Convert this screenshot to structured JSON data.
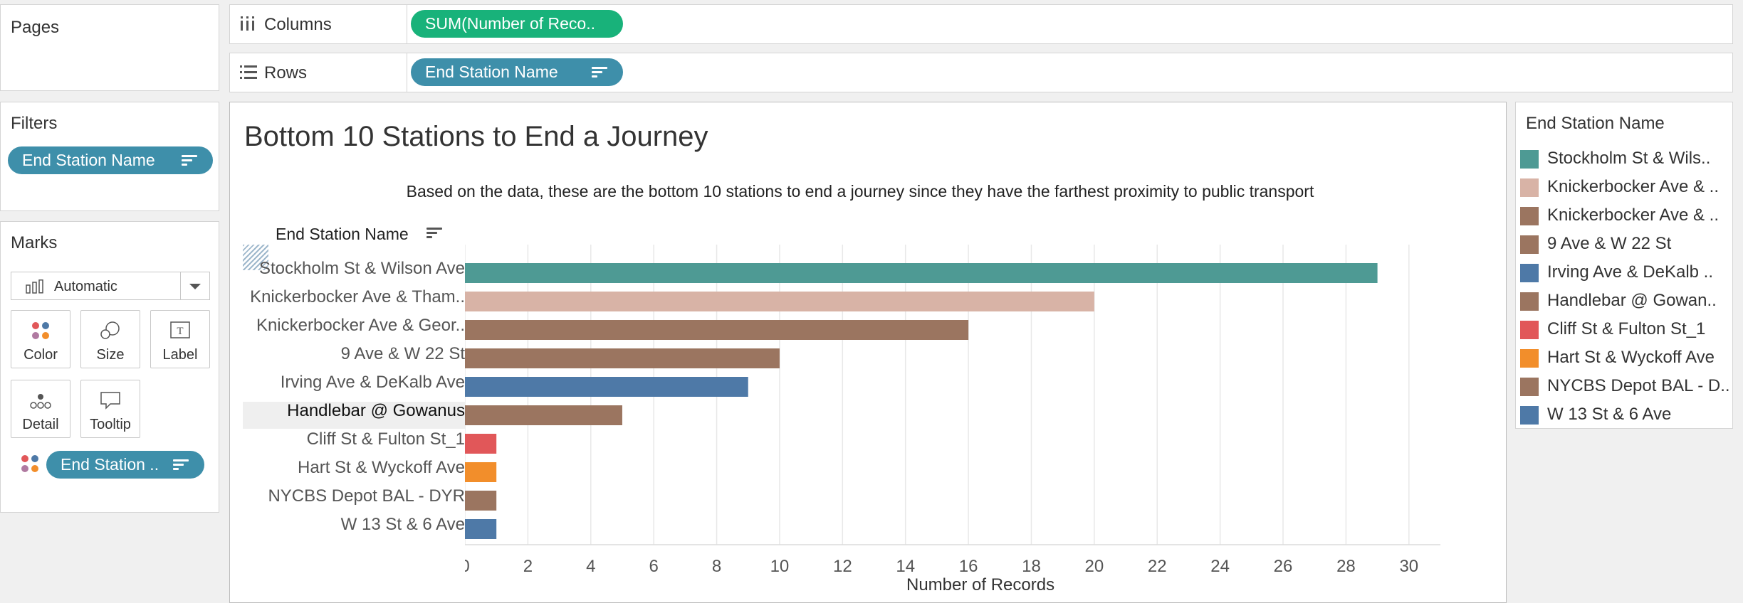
{
  "pages": {
    "title": "Pages"
  },
  "shelves": {
    "columns": {
      "label": "Columns",
      "pill": "SUM(Number of Reco.."
    },
    "rows": {
      "label": "Rows",
      "pill": "End Station Name"
    }
  },
  "filters": {
    "title": "Filters",
    "pill": "End Station Name"
  },
  "marks": {
    "title": "Marks",
    "type_selected": "Automatic",
    "buttons": {
      "color": "Color",
      "size": "Size",
      "label": "Label",
      "detail": "Detail",
      "tooltip": "Tooltip"
    },
    "color_pill": "End Station .."
  },
  "legend": {
    "title": "End Station Name",
    "items": [
      {
        "label": "Stockholm St & Wils..",
        "color": "#4e9a94"
      },
      {
        "label": "Knickerbocker Ave & ..",
        "color": "#d8b3a6"
      },
      {
        "label": "Knickerbocker Ave & ..",
        "color": "#9b7560"
      },
      {
        "label": "9 Ave & W 22 St",
        "color": "#9b7560"
      },
      {
        "label": "Irving Ave & DeKalb ..",
        "color": "#4e79a7"
      },
      {
        "label": "Handlebar @ Gowan..",
        "color": "#9b7560"
      },
      {
        "label": "Cliff St & Fulton St_1",
        "color": "#e15759"
      },
      {
        "label": "Hart St & Wyckoff Ave",
        "color": "#f28e2b"
      },
      {
        "label": "NYCBS Depot BAL - D..",
        "color": "#9b7560"
      },
      {
        "label": "W 13 St & 6 Ave",
        "color": "#4e79a7"
      }
    ]
  },
  "chart_data": {
    "type": "bar",
    "orientation": "horizontal",
    "title": "Bottom 10 Stations to End a Journey",
    "subtitle": "Based on the data, these are the bottom 10 stations to end a journey since they have the farthest proximity to public transport",
    "ylabel": "End Station Name",
    "xlabel": "Number of Records",
    "xlim": [
      0,
      31
    ],
    "xticks": [
      0,
      2,
      4,
      6,
      8,
      10,
      12,
      14,
      16,
      18,
      20,
      22,
      24,
      26,
      28,
      30
    ],
    "grid": true,
    "categories": [
      "Stockholm St & Wilson Ave",
      "Knickerbocker Ave & Tham..",
      "Knickerbocker Ave & Geor..",
      "9 Ave & W 22 St",
      "Irving Ave & DeKalb Ave",
      "Handlebar @ Gowanus",
      "Cliff St & Fulton St_1",
      "Hart St & Wyckoff Ave",
      "NYCBS Depot BAL - DYR",
      "W 13 St & 6 Ave"
    ],
    "values": [
      29,
      20,
      16,
      10,
      9,
      5,
      1,
      1,
      1,
      1
    ],
    "colors": [
      "#4e9a94",
      "#d8b3a6",
      "#9b7560",
      "#9b7560",
      "#4e79a7",
      "#9b7560",
      "#e15759",
      "#f28e2b",
      "#9b7560",
      "#4e79a7"
    ],
    "highlighted_category": "Handlebar @ Gowanus"
  }
}
